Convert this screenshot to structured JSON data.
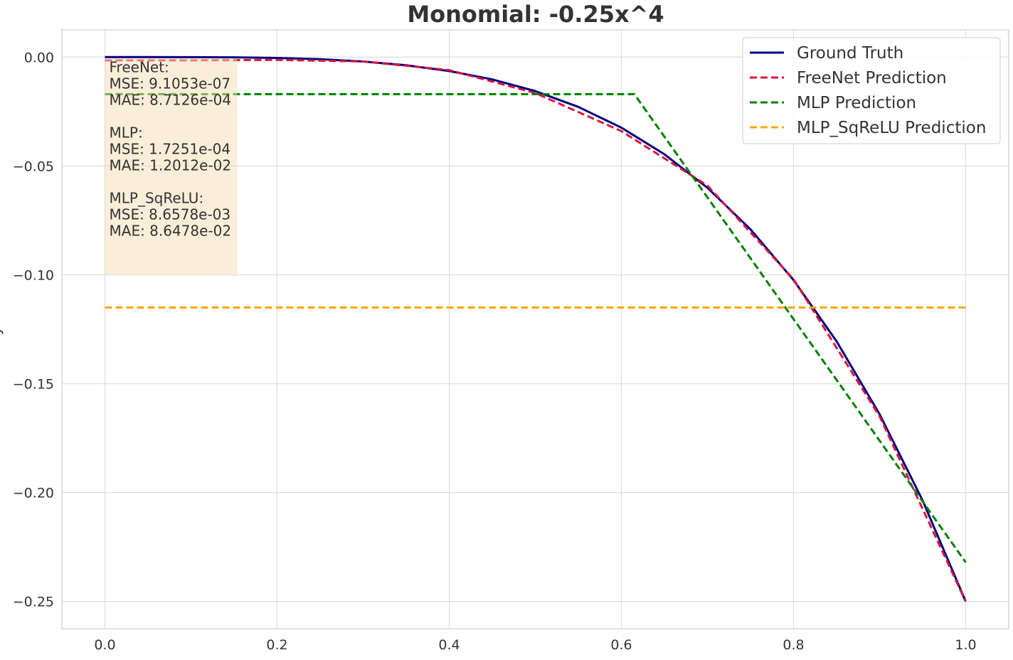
{
  "chart_data": {
    "type": "line",
    "title": "Monomial: -0.25x^4",
    "xlabel": "",
    "ylabel": "y",
    "xlim": [
      -0.05,
      1.05
    ],
    "ylim": [
      -0.2625,
      0.0125
    ],
    "grid": true,
    "x_ticks": [
      0.0,
      0.2,
      0.4,
      0.6,
      0.8,
      1.0
    ],
    "x_tick_labels": [
      "0.0",
      "0.2",
      "0.4",
      "0.6",
      "0.8",
      "1.0"
    ],
    "y_ticks": [
      0.0,
      -0.05,
      -0.1,
      -0.15,
      -0.2,
      -0.25
    ],
    "y_tick_labels": [
      "0.00",
      "−0.05",
      "−0.10",
      "−0.15",
      "−0.20",
      "−0.25"
    ],
    "legend_position": "top-right",
    "series": [
      {
        "name": "Ground Truth",
        "color": "#000080",
        "style": "solid",
        "x": [
          0.0,
          0.05,
          0.1,
          0.15,
          0.2,
          0.25,
          0.3,
          0.35,
          0.4,
          0.45,
          0.5,
          0.55,
          0.6,
          0.65,
          0.7,
          0.75,
          0.8,
          0.85,
          0.9,
          0.95,
          1.0
        ],
        "y": [
          0.0,
          -1.6e-06,
          -2.5e-05,
          -0.000127,
          -0.0004,
          -0.000977,
          -0.002025,
          -0.003752,
          -0.0064,
          -0.010252,
          -0.015625,
          -0.022877,
          -0.0324,
          -0.044627,
          -0.060025,
          -0.079102,
          -0.1024,
          -0.130502,
          -0.164025,
          -0.203627,
          -0.25
        ]
      },
      {
        "name": "FreeNet Prediction",
        "color": "#dc143c",
        "style": "dashed",
        "x": [
          0.0,
          0.1,
          0.2,
          0.3,
          0.4,
          0.5,
          0.6,
          0.7,
          0.8,
          0.9,
          1.0
        ],
        "y": [
          -0.0015,
          -0.0015,
          -0.0013,
          -0.002,
          -0.006,
          -0.0165,
          -0.034,
          -0.059,
          -0.102,
          -0.165,
          -0.25
        ]
      },
      {
        "name": "MLP Prediction",
        "color": "#008000",
        "style": "dashed",
        "x": [
          0.0,
          0.615,
          1.0
        ],
        "y": [
          -0.017,
          -0.017,
          -0.232
        ]
      },
      {
        "name": "MLP_SqReLU Prediction",
        "color": "#ffa500",
        "style": "dashed",
        "x": [
          0.0,
          1.0
        ],
        "y": [
          -0.115,
          -0.115
        ]
      }
    ],
    "annotation": {
      "lines": [
        "FreeNet:",
        "MSE: 9.1053e-07",
        "MAE: 8.7126e-04",
        "",
        "MLP:",
        "MSE: 1.7251e-04",
        "MAE: 1.2012e-02",
        "",
        "MLP_SqReLU:",
        "MSE: 8.6578e-03",
        "MAE: 8.6478e-02"
      ],
      "background_color": "#f5deb3"
    }
  }
}
